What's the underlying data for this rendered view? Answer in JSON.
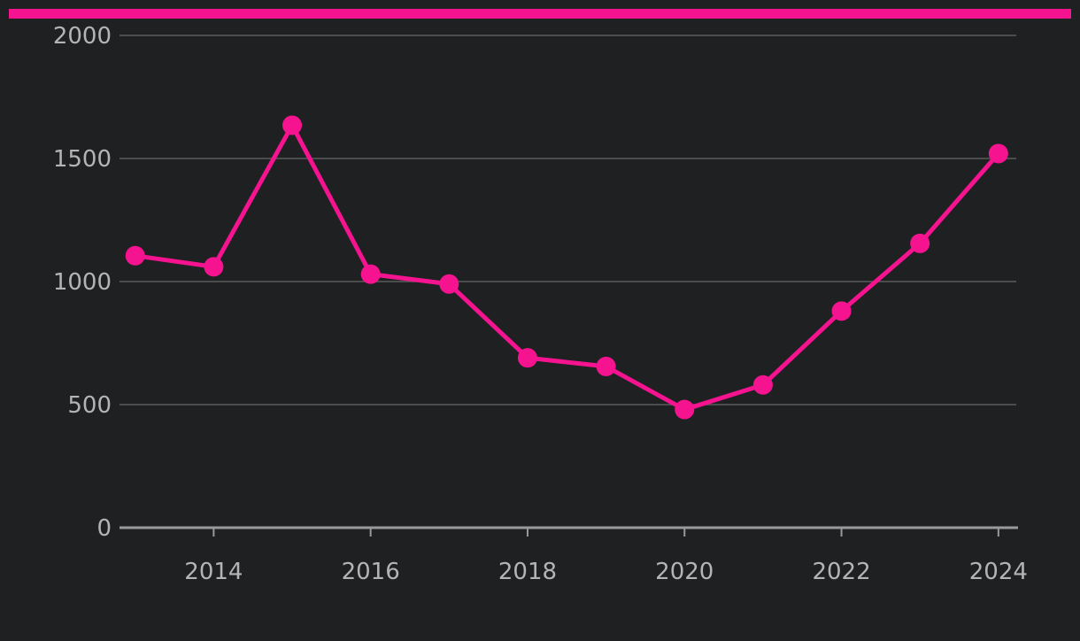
{
  "colors": {
    "background": "#1f2022",
    "accent": "#f51390",
    "gridline": "#5a5a5a",
    "axis": "#9a9a9a",
    "tick_text": "#b4b4b4"
  },
  "chart_data": {
    "type": "line",
    "title": "",
    "xlabel": "",
    "ylabel": "",
    "x": [
      2013,
      2014,
      2015,
      2016,
      2017,
      2018,
      2019,
      2020,
      2021,
      2022,
      2023,
      2024
    ],
    "series": [
      {
        "values": [
          1105,
          1060,
          1635,
          1030,
          990,
          690,
          655,
          480,
          580,
          880,
          1155,
          1520
        ],
        "color": "#f51390"
      }
    ],
    "xlim": [
      2012.8,
      2024.25
    ],
    "ylim": [
      0,
      2000
    ],
    "y_ticks": [
      0,
      500,
      1000,
      1500,
      2000
    ],
    "y_tick_labels": [
      "0",
      "500",
      "1000",
      "1500",
      "2000"
    ],
    "x_ticks": [
      2014,
      2016,
      2018,
      2020,
      2022,
      2024
    ],
    "x_tick_labels": [
      "2014",
      "2016",
      "2018",
      "2020",
      "2022",
      "2024"
    ],
    "grid": true,
    "legend": "none",
    "markers": true
  }
}
